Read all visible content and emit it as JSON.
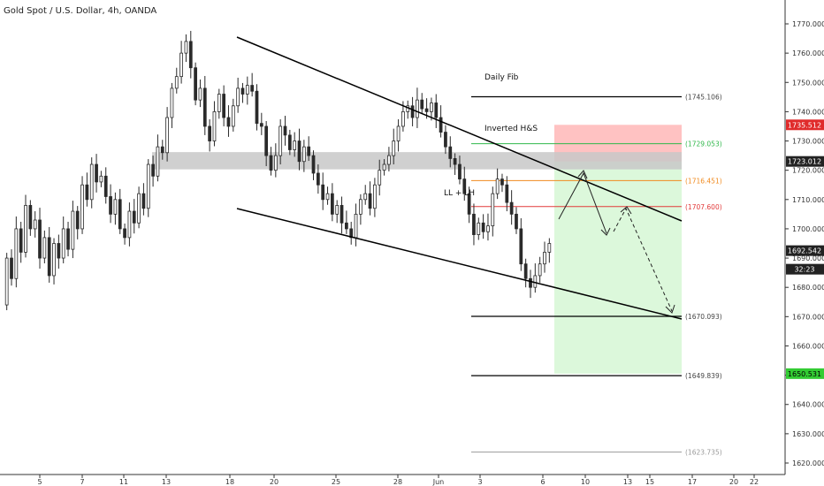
{
  "chart_data": {
    "type": "candlestick",
    "title": "Gold Spot / U.S. Dollar, 4h, OANDA",
    "x_tick_labels": [
      "5",
      "7",
      "11",
      "13",
      "18",
      "20",
      "25",
      "28",
      "Jun",
      "3",
      "6",
      "10",
      "13",
      "15",
      "17",
      "20",
      "22"
    ],
    "y_tick_labels": [
      "1770.000",
      "1760.000",
      "1750.000",
      "1740.000",
      "1730.000",
      "1720.000",
      "1710.000",
      "1700.000",
      "1690.000",
      "1680.000",
      "1670.000",
      "1660.000",
      "1650.000",
      "1640.000",
      "1630.000",
      "1620.000"
    ],
    "ylim": [
      1617,
      1773
    ],
    "grid": false,
    "colors": {
      "up": "#2a2a2a",
      "down": "#2a2a2a",
      "fib_line": "#000000",
      "resistance_box": "#c8c8c8"
    },
    "price_path": [
      1674,
      1690,
      1683,
      1700,
      1692,
      1708,
      1700,
      1703,
      1690,
      1697,
      1684,
      1695,
      1690,
      1700,
      1693,
      1706,
      1700,
      1715,
      1710,
      1722,
      1716,
      1718,
      1711,
      1705,
      1710,
      1700,
      1697,
      1706,
      1702,
      1712,
      1707,
      1722,
      1718,
      1728,
      1726,
      1738,
      1748,
      1752,
      1760,
      1764,
      1755,
      1744,
      1748,
      1735,
      1730,
      1740,
      1746,
      1738,
      1735,
      1742,
      1748,
      1746,
      1749,
      1747,
      1736,
      1735,
      1725,
      1720,
      1725,
      1735,
      1732,
      1727,
      1730,
      1723,
      1728,
      1725,
      1719,
      1715,
      1710,
      1712,
      1705,
      1708,
      1702,
      1700,
      1697,
      1705,
      1710,
      1712,
      1707,
      1715,
      1720,
      1722,
      1725,
      1730,
      1735,
      1740,
      1742,
      1738,
      1744,
      1741,
      1740,
      1743,
      1738,
      1733,
      1728,
      1724,
      1722,
      1717,
      1712,
      1705,
      1698,
      1702,
      1699,
      1701,
      1712,
      1717,
      1715,
      1709,
      1705,
      1700,
      1688,
      1683,
      1680,
      1684,
      1688,
      1692,
      1695
    ],
    "levels": [
      {
        "label": "(1745.106)",
        "value": 1745.106,
        "color": "#000000"
      },
      {
        "label": "(1729.053)",
        "value": 1729.053,
        "color": "#31b84b"
      },
      {
        "label": "(1716.451)",
        "value": 1716.451,
        "color": "#f08a1e"
      },
      {
        "label": "(1707.600)",
        "value": 1707.6,
        "color": "#e23a3a"
      },
      {
        "label": "(1670.093)",
        "value": 1670.093,
        "color": "#000000"
      },
      {
        "label": "(1649.839)",
        "value": 1649.839,
        "color": "#000000"
      },
      {
        "label": "(1623.735)",
        "value": 1623.735,
        "color": "#999999"
      }
    ],
    "annotations": [
      "Daily Fib",
      "Inverted H&S",
      "LL + LH"
    ],
    "price_badges": [
      {
        "label": "1735.512",
        "value": 1735.512,
        "bg": "#e02b2b",
        "fg": "#ffffff"
      },
      {
        "label": "1723.012",
        "value": 1723.012,
        "bg": "#222222",
        "fg": "#ffffff"
      },
      {
        "label": "1692.542",
        "value": 1692.542,
        "bg": "#222222",
        "fg": "#ffffff"
      },
      {
        "label": "32:23",
        "value": 1686.2,
        "bg": "#222222",
        "fg": "#ffffff"
      },
      {
        "label": "1650.531",
        "value": 1650.531,
        "bg": "#33cc33",
        "fg": "#000000"
      }
    ],
    "trade_zones": {
      "stop": {
        "from": 1723.012,
        "to": 1735.512,
        "color": "#ff8f8f"
      },
      "target": {
        "from": 1650.531,
        "to": 1723.012,
        "color": "#bff2bd"
      }
    }
  }
}
